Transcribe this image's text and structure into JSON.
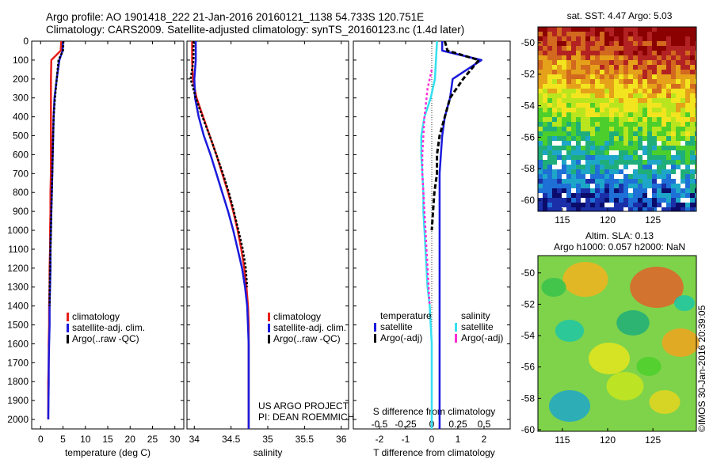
{
  "title": {
    "line1": "Argo profile: AO 1901418_222 21-Jan-2016 20160121_1138 54.733S 120.751E",
    "line2": "Climatology: CARS2009. Satellite-adjusted climatology: synTS_20160123.nc (1.4d later)"
  },
  "colors": {
    "climatology": "#e8201c",
    "satellite": "#1a1adc",
    "argo": "#000000",
    "sal_satellite": "#33e0f0",
    "sal_argo": "#ff2bd6"
  },
  "y_axis": {
    "ticks": [
      "0",
      "100",
      "200",
      "300",
      "400",
      "500",
      "600",
      "700",
      "800",
      "900",
      "1000",
      "1100",
      "1200",
      "1300",
      "1400",
      "1500",
      "1600",
      "1700",
      "1800",
      "1900",
      "2000"
    ]
  },
  "panel_temp": {
    "xlabel": "temperature (deg C)",
    "x_ticks": [
      "0",
      "5",
      "10",
      "15",
      "20",
      "25",
      "30"
    ],
    "legend": [
      "climatology",
      "satellite-adj. clim.",
      "Argo(..raw -QC)"
    ]
  },
  "panel_sal": {
    "xlabel": "salinity",
    "x_ticks": [
      "34",
      "34.5",
      "35",
      "35.5",
      "36"
    ],
    "legend": [
      "climatology",
      "satellite-adj. clim.",
      "Argo(..raw -QC)"
    ],
    "credit1": "US ARGO PROJECT",
    "credit2": "PI: DEAN ROEMMICH"
  },
  "panel_diff": {
    "xlabel": "T difference from climatology",
    "top_label": "S difference from climatology",
    "s_ticks": [
      "-0.5",
      "-0.25",
      "0",
      "0.25",
      "0.5"
    ],
    "t_ticks": [
      "-2",
      "-1",
      "0",
      "1",
      "2"
    ],
    "legend_temp_title": "temperature",
    "legend_sal_title": "salinity",
    "legend_temp": [
      "satellite",
      "Argo(-adj)"
    ],
    "legend_sal": [
      "satellite",
      "Argo(-adj)"
    ]
  },
  "map_sst": {
    "title": "sat. SST: 4.47  Argo: 5.03",
    "y_ticks": [
      "-50",
      "-52",
      "-54",
      "-56",
      "-58",
      "-60"
    ],
    "x_ticks": [
      "115",
      "120",
      "125"
    ]
  },
  "map_sla": {
    "title1": "Altim. SLA: 0.13",
    "title2": "Argo h1000: 0.057  h2000: NaN",
    "y_ticks": [
      "-50",
      "-52",
      "-54",
      "-56",
      "-58",
      "-60"
    ],
    "x_ticks": [
      "115",
      "120",
      "125"
    ]
  },
  "stamp": "©IMOS 30-Jan-2016 20:39:05",
  "chart_data": [
    {
      "type": "line",
      "xlabel": "temperature (deg C)",
      "ylabel": "",
      "xlim": [
        -2,
        32
      ],
      "ylim": [
        2050,
        0
      ],
      "series": [
        {
          "name": "climatology",
          "x": [
            4.6,
            4.5,
            2.4,
            2.3,
            2.3,
            2.3,
            2.3,
            2.3,
            2.3,
            2.2,
            2.2,
            2.1,
            2.1,
            2.0,
            2.0,
            1.9,
            1.9,
            1.8,
            1.8,
            1.7,
            1.7
          ],
          "y": [
            0,
            50,
            100,
            200,
            300,
            400,
            500,
            600,
            700,
            800,
            900,
            1000,
            1100,
            1200,
            1300,
            1400,
            1500,
            1600,
            1700,
            1800,
            2000
          ]
        },
        {
          "name": "satellite-adj. clim.",
          "x": [
            5.0,
            4.9,
            4.2,
            3.6,
            3.1,
            2.9,
            2.8,
            2.7,
            2.6,
            2.5,
            2.4,
            2.3,
            2.2,
            2.2,
            2.1,
            2.0,
            2.0,
            1.9,
            1.8,
            1.8,
            1.7
          ],
          "y": [
            0,
            50,
            100,
            200,
            300,
            400,
            500,
            600,
            700,
            800,
            900,
            1000,
            1100,
            1200,
            1300,
            1400,
            1500,
            1600,
            1700,
            1800,
            2000
          ]
        },
        {
          "name": "Argo(..raw -QC)",
          "x": [
            5.1,
            5.0,
            4.0,
            3.6,
            3.2,
            2.9,
            2.8,
            2.7,
            2.6,
            2.5,
            2.4,
            2.3,
            2.2,
            2.1,
            2.0,
            2.0
          ],
          "y": [
            0,
            50,
            100,
            200,
            300,
            400,
            500,
            600,
            700,
            800,
            900,
            1000,
            1100,
            1200,
            1300,
            1400
          ]
        }
      ]
    },
    {
      "type": "line",
      "xlabel": "salinity",
      "ylabel": "",
      "xlim": [
        33.9,
        36.1
      ],
      "ylim": [
        2050,
        0
      ],
      "series": [
        {
          "name": "climatology",
          "x": [
            33.97,
            33.97,
            33.98,
            34.03,
            34.12,
            34.21,
            34.3,
            34.38,
            34.46,
            34.53,
            34.59,
            34.64,
            34.68,
            34.71,
            34.73,
            34.74,
            34.74,
            34.74,
            34.74,
            34.74
          ],
          "y": [
            0,
            100,
            200,
            300,
            400,
            500,
            600,
            700,
            800,
            900,
            1000,
            1100,
            1200,
            1300,
            1400,
            1500,
            1600,
            1700,
            1800,
            2050
          ]
        },
        {
          "name": "satellite-adj. clim.",
          "x": [
            34.02,
            34.02,
            34.0,
            34.01,
            34.06,
            34.13,
            34.22,
            34.3,
            34.38,
            34.46,
            34.53,
            34.59,
            34.65,
            34.69,
            34.72,
            34.73,
            34.74,
            34.74,
            34.74,
            34.74
          ],
          "y": [
            0,
            100,
            200,
            300,
            400,
            500,
            600,
            700,
            800,
            900,
            1000,
            1100,
            1200,
            1300,
            1400,
            1500,
            1600,
            1700,
            1800,
            2050
          ]
        },
        {
          "name": "Argo(..raw -QC)",
          "x": [
            33.99,
            33.99,
            33.95,
            34.02,
            34.11,
            34.21,
            34.3,
            34.39,
            34.47,
            34.54,
            34.6,
            34.66,
            34.7,
            34.72
          ],
          "y": [
            0,
            100,
            200,
            300,
            400,
            500,
            600,
            700,
            800,
            900,
            1000,
            1100,
            1200,
            1300
          ]
        }
      ]
    },
    {
      "type": "line",
      "xlabel": "T difference from climatology",
      "ylabel": "",
      "xlim": [
        -3,
        3
      ],
      "ylim": [
        2050,
        0
      ],
      "series": [
        {
          "name": "satellite",
          "x": [
            0.4,
            0.4,
            1.9,
            0.8,
            0.7,
            0.5,
            0.4,
            0.35,
            0.3,
            0.3,
            0.3,
            0.3,
            0.3,
            0.3,
            0.3,
            0.3,
            0.3,
            0.3,
            0.3,
            0.3
          ],
          "y": [
            0,
            50,
            100,
            200,
            300,
            400,
            500,
            600,
            700,
            800,
            900,
            1000,
            1100,
            1200,
            1300,
            1400,
            1500,
            1600,
            1800,
            2050
          ]
        },
        {
          "name": "Argo(-adj)",
          "x": [
            0.5,
            0.6,
            1.8,
            1.2,
            0.7,
            0.5,
            0.3,
            0.2,
            0.2,
            0.1,
            0.05,
            0.0
          ],
          "y": [
            0,
            50,
            100,
            200,
            300,
            400,
            500,
            600,
            700,
            800,
            900,
            1000
          ]
        }
      ]
    },
    {
      "type": "line",
      "xlabel": "S difference from climatology",
      "ylabel": "",
      "xlim": [
        -0.75,
        0.75
      ],
      "ylim": [
        2050,
        0
      ],
      "series": [
        {
          "name": "satellite",
          "x": [
            0.05,
            0.04,
            0.03,
            -0.01,
            -0.07,
            -0.1,
            -0.1,
            -0.09,
            -0.08,
            -0.08,
            -0.07,
            -0.06,
            -0.05,
            -0.04,
            -0.02,
            -0.01,
            0.0,
            0.0,
            0.0,
            0.0
          ],
          "y": [
            0,
            100,
            200,
            300,
            400,
            500,
            600,
            700,
            800,
            900,
            1000,
            1100,
            1200,
            1300,
            1400,
            1500,
            1600,
            1700,
            1800,
            2050
          ]
        },
        {
          "name": "Argo(-adj)",
          "x": [
            0.0,
            -0.02,
            -0.04,
            -0.07,
            -0.08,
            -0.09,
            -0.09,
            -0.08,
            -0.07,
            -0.06,
            -0.05,
            -0.04,
            -0.03,
            -0.02
          ],
          "y": [
            150,
            200,
            250,
            400,
            500,
            600,
            700,
            800,
            900,
            1000,
            1100,
            1200,
            1300,
            1400
          ]
        }
      ]
    }
  ]
}
